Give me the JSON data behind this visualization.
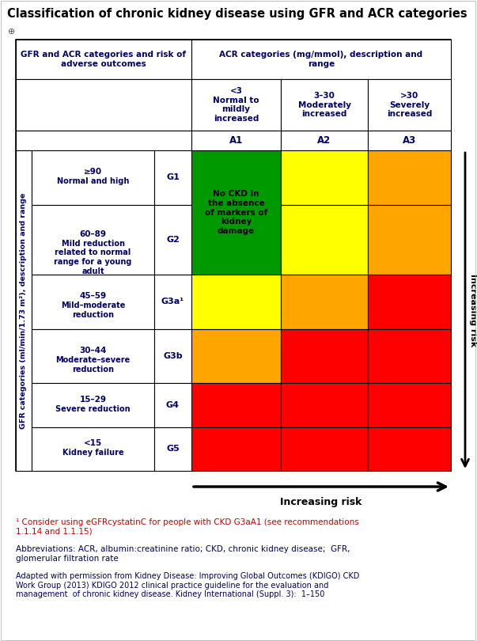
{
  "title": "Classification of chronic kidney disease using GFR and ACR categories",
  "acr_cols": [
    {
      "range": "<3\nNormal to\nmildly\nincreased",
      "label": "A1"
    },
    {
      "range": "3–30\nModerately\nincreased",
      "label": "A2"
    },
    {
      "range": ">30\nSeverely\nincreased",
      "label": "A3"
    }
  ],
  "gfr_rows": [
    {
      "range": "≥90",
      "desc": "Normal and high",
      "label": "G1"
    },
    {
      "range": "60–89",
      "desc": "Mild reduction\nrelated to normal\nrange for a young\nadult",
      "label": "G2"
    },
    {
      "range": "45–59",
      "desc": "Mild–moderate\nreduction",
      "label": "G3a¹"
    },
    {
      "range": "30–44",
      "desc": "Moderate–severe\nreduction",
      "label": "G3b"
    },
    {
      "range": "15–29",
      "desc": "Severe reduction",
      "label": "G4"
    },
    {
      "range": "<15",
      "desc": "Kidney failure",
      "label": "G5"
    }
  ],
  "cell_colors": [
    [
      "#009900",
      "#FFFF00",
      "#FFA500"
    ],
    [
      "#009900",
      "#FFFF00",
      "#FFA500"
    ],
    [
      "#FFFF00",
      "#FFA500",
      "#FF0000"
    ],
    [
      "#FFA500",
      "#FF0000",
      "#FF0000"
    ],
    [
      "#FF0000",
      "#FF0000",
      "#FF0000"
    ],
    [
      "#FF0000",
      "#FF0000",
      "#FF0000"
    ]
  ],
  "g1_g2_merged_text": "No CKD in\nthe absence\nof markers of\nkidney\ndamage",
  "gfr_ylabel": "GFR categories (ml/min/1.73 m²), description and range",
  "footnote1": "¹ Consider using eGFRcystatinC for people with CKD G3aA1 (see recommendations\n1.1.14 and 1.1.15)",
  "footnote2": "Abbreviations: ACR, albumin:creatinine ratio; CKD, chronic kidney disease;  GFR,\nglomerular filtration rate",
  "footnote3": "Adapted with permission from Kidney Disease: Improving Global Outcomes (KDIGO) CKD\nWork Group (2013) KDIGO 2012 clinical practice guideline for the evaluation and\nmanagement  of chronic kidney disease. Kidney International (Suppl. 3):  1–150",
  "increasing_risk_label": "Increasing risk",
  "bg_color": "#FFFFFF",
  "header_text_color": "#000066",
  "footnote1_color": "#CC0000",
  "footnote2_color": "#000066",
  "footnote3_color": "#000066"
}
